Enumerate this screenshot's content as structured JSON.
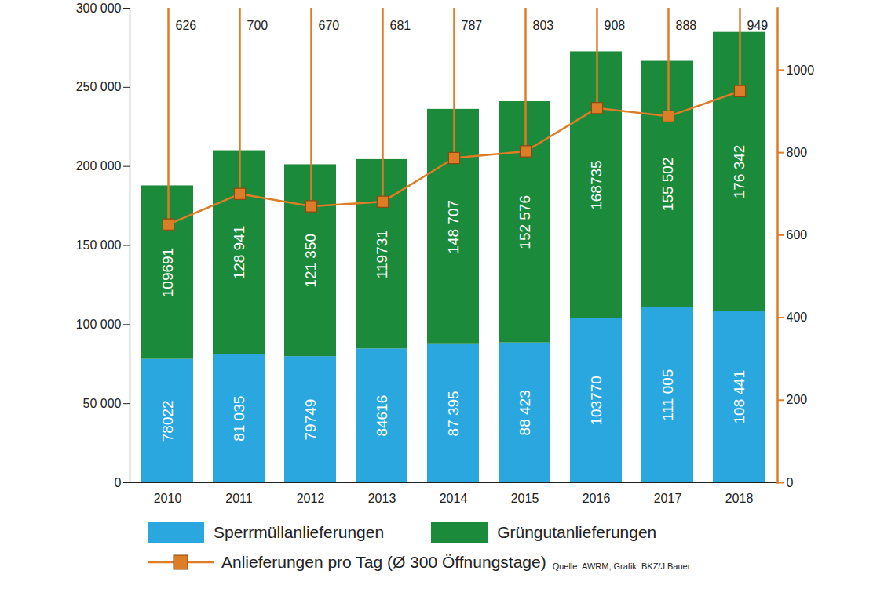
{
  "chart_data": {
    "type": "bar",
    "stacked": true,
    "categories": [
      "2010",
      "2011",
      "2012",
      "2013",
      "2014",
      "2015",
      "2016",
      "2017",
      "2018"
    ],
    "series": [
      {
        "name": "Sperrmüllanlieferungen",
        "color": "#2aa7df",
        "values": [
          78022,
          81035,
          79749,
          84616,
          87395,
          88423,
          103770,
          111005,
          108441
        ],
        "value_labels": [
          "78022",
          "81 035",
          "79749",
          "84616",
          "87 395",
          "88 423",
          "103770",
          "111 005",
          "108 441"
        ],
        "data_labels": true
      },
      {
        "name": "Grüngutanlieferungen",
        "color": "#1b8a3a",
        "values": [
          109691,
          128941,
          121350,
          119731,
          148707,
          152576,
          168735,
          155502,
          176342
        ],
        "value_labels": [
          "109691",
          "128 941",
          "121 350",
          "119731",
          "148 707",
          "152 576",
          "168735",
          "155 502",
          "176 342"
        ],
        "data_labels": true
      },
      {
        "name": "Anlieferungen pro Tag (Ø 300 Öffnungstage)",
        "type": "line",
        "axis": "y2",
        "color": "#de7d27",
        "marker": "square",
        "values": [
          626,
          700,
          670,
          681,
          787,
          803,
          908,
          888,
          949
        ],
        "data_labels": true
      }
    ],
    "ylim": [
      0,
      300000
    ],
    "yticks": [
      0,
      {
        "value": 50000,
        "label": "50 000"
      },
      {
        "value": 100000,
        "label": "100 000"
      },
      {
        "value": 150000,
        "label": "150 000"
      },
      {
        "value": 200000,
        "label": "200 000"
      },
      {
        "value": 250000,
        "label": "250 000"
      },
      {
        "value": 300000,
        "label": "300 000"
      }
    ],
    "y2lim": [
      0,
      1150
    ],
    "y2ticks": [
      0,
      200,
      400,
      600,
      800,
      1000
    ],
    "grid": false,
    "legend": "bottom",
    "caption": "Quelle: AWRM, Grafik: BKZ/J.Bauer"
  }
}
